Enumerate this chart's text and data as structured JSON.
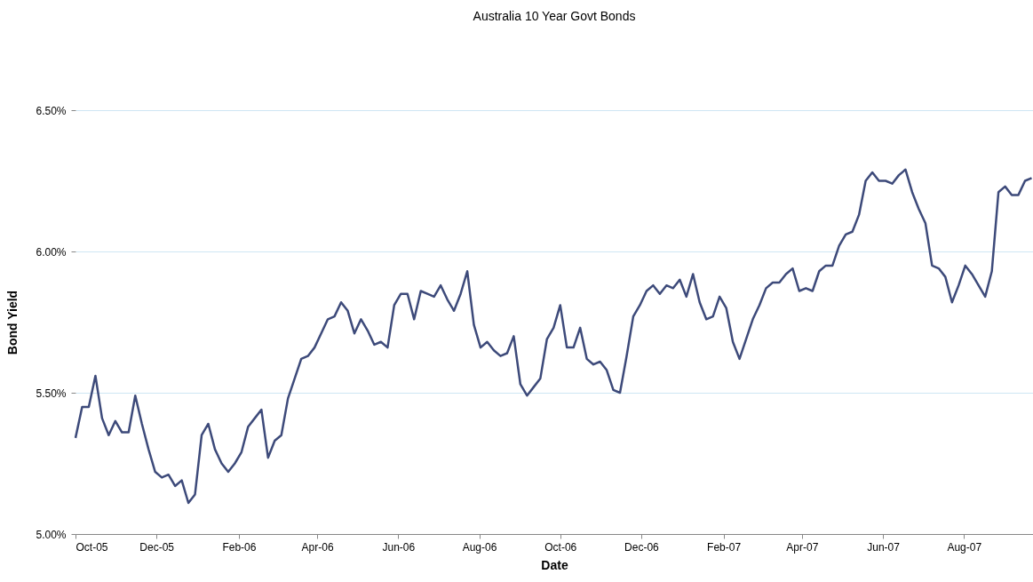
{
  "chart_data": {
    "type": "line",
    "title": "Australia 10 Year Govt Bonds",
    "xlabel": "Date",
    "ylabel": "Bond Yield",
    "xlim": [
      "2005-10-01",
      "2007-09-22"
    ],
    "xticks": [
      {
        "value": "2005-10-01",
        "label": "Oct-05"
      },
      {
        "value": "2005-12-01",
        "label": "Dec-05"
      },
      {
        "value": "2006-02-01",
        "label": "Feb-06"
      },
      {
        "value": "2006-04-01",
        "label": "Apr-06"
      },
      {
        "value": "2006-06-01",
        "label": "Jun-06"
      },
      {
        "value": "2006-08-01",
        "label": "Aug-06"
      },
      {
        "value": "2006-10-01",
        "label": "Oct-06"
      },
      {
        "value": "2006-12-01",
        "label": "Dec-06"
      },
      {
        "value": "2007-02-01",
        "label": "Feb-07"
      },
      {
        "value": "2007-04-01",
        "label": "Apr-07"
      },
      {
        "value": "2007-06-01",
        "label": "Jun-07"
      },
      {
        "value": "2007-08-01",
        "label": "Aug-07"
      }
    ],
    "ylim": [
      5,
      6.5
    ],
    "yticks": [
      {
        "value": 5,
        "label": "5.00%"
      },
      {
        "value": 5.5,
        "label": "5.50%"
      },
      {
        "value": 6,
        "label": "6.00%"
      },
      {
        "value": 6.5,
        "label": "6.50%"
      }
    ],
    "grid": "y",
    "marker": "none",
    "line_style": "solid",
    "series": [
      {
        "color": "#3d4a7a",
        "x": [
          "2005-10-01",
          "2005-10-06",
          "2005-10-11",
          "2005-10-16",
          "2005-10-21",
          "2005-10-26",
          "2005-10-31",
          "2005-11-05",
          "2005-11-10",
          "2005-11-15",
          "2005-11-20",
          "2005-11-25",
          "2005-11-30",
          "2005-12-05",
          "2005-12-10",
          "2005-12-15",
          "2005-12-20",
          "2005-12-25",
          "2005-12-30",
          "2006-01-04",
          "2006-01-09",
          "2006-01-14",
          "2006-01-19",
          "2006-01-24",
          "2006-01-29",
          "2006-02-03",
          "2006-02-08",
          "2006-02-13",
          "2006-02-18",
          "2006-02-23",
          "2006-02-28",
          "2006-03-05",
          "2006-03-10",
          "2006-03-15",
          "2006-03-20",
          "2006-03-25",
          "2006-03-30",
          "2006-04-04",
          "2006-04-09",
          "2006-04-14",
          "2006-04-19",
          "2006-04-24",
          "2006-04-29",
          "2006-05-04",
          "2006-05-09",
          "2006-05-14",
          "2006-05-19",
          "2006-05-24",
          "2006-05-29",
          "2006-06-03",
          "2006-06-08",
          "2006-06-13",
          "2006-06-18",
          "2006-06-23",
          "2006-06-28",
          "2006-07-03",
          "2006-07-08",
          "2006-07-13",
          "2006-07-18",
          "2006-07-23",
          "2006-07-28",
          "2006-08-02",
          "2006-08-07",
          "2006-08-12",
          "2006-08-17",
          "2006-08-22",
          "2006-08-27",
          "2006-09-01",
          "2006-09-06",
          "2006-09-11",
          "2006-09-16",
          "2006-09-21",
          "2006-09-26",
          "2006-10-01",
          "2006-10-06",
          "2006-10-11",
          "2006-10-16",
          "2006-10-21",
          "2006-10-26",
          "2006-10-31",
          "2006-11-05",
          "2006-11-10",
          "2006-11-15",
          "2006-11-20",
          "2006-11-25",
          "2006-11-30",
          "2006-12-05",
          "2006-12-10",
          "2006-12-15",
          "2006-12-20",
          "2006-12-25",
          "2006-12-30",
          "2007-01-04",
          "2007-01-09",
          "2007-01-14",
          "2007-01-19",
          "2007-01-24",
          "2007-01-29",
          "2007-02-03",
          "2007-02-08",
          "2007-02-13",
          "2007-02-18",
          "2007-02-23",
          "2007-02-28",
          "2007-03-05",
          "2007-03-10",
          "2007-03-15",
          "2007-03-20",
          "2007-03-25",
          "2007-03-30",
          "2007-04-04",
          "2007-04-09",
          "2007-04-14",
          "2007-04-19",
          "2007-04-24",
          "2007-04-29",
          "2007-05-04",
          "2007-05-09",
          "2007-05-14",
          "2007-05-19",
          "2007-05-24",
          "2007-05-29",
          "2007-06-03",
          "2007-06-08",
          "2007-06-13",
          "2007-06-18",
          "2007-06-23",
          "2007-06-28",
          "2007-07-03",
          "2007-07-08",
          "2007-07-13",
          "2007-07-18",
          "2007-07-23",
          "2007-07-28",
          "2007-08-02",
          "2007-08-07",
          "2007-08-12",
          "2007-08-17",
          "2007-08-22",
          "2007-08-27",
          "2007-09-01",
          "2007-09-06",
          "2007-09-11",
          "2007-09-16",
          "2007-09-21"
        ],
        "values": [
          5.34,
          5.45,
          5.45,
          5.56,
          5.41,
          5.35,
          5.4,
          5.36,
          5.36,
          5.49,
          5.39,
          5.3,
          5.22,
          5.2,
          5.21,
          5.17,
          5.19,
          5.11,
          5.14,
          5.35,
          5.39,
          5.3,
          5.25,
          5.22,
          5.25,
          5.29,
          5.38,
          5.41,
          5.44,
          5.27,
          5.33,
          5.35,
          5.48,
          5.55,
          5.62,
          5.63,
          5.66,
          5.71,
          5.76,
          5.77,
          5.82,
          5.79,
          5.71,
          5.76,
          5.72,
          5.67,
          5.68,
          5.66,
          5.81,
          5.85,
          5.85,
          5.76,
          5.86,
          5.85,
          5.84,
          5.88,
          5.83,
          5.79,
          5.85,
          5.93,
          5.74,
          5.66,
          5.68,
          5.65,
          5.63,
          5.64,
          5.7,
          5.53,
          5.49,
          5.52,
          5.55,
          5.69,
          5.73,
          5.81,
          5.66,
          5.66,
          5.73,
          5.62,
          5.6,
          5.61,
          5.58,
          5.51,
          5.5,
          5.63,
          5.77,
          5.81,
          5.86,
          5.88,
          5.85,
          5.88,
          5.87,
          5.9,
          5.84,
          5.92,
          5.82,
          5.76,
          5.77,
          5.84,
          5.8,
          5.68,
          5.62,
          5.69,
          5.76,
          5.81,
          5.87,
          5.89,
          5.89,
          5.92,
          5.94,
          5.86,
          5.87,
          5.86,
          5.93,
          5.95,
          5.95,
          6.02,
          6.06,
          6.07,
          6.13,
          6.25,
          6.28,
          6.25,
          6.25,
          6.24,
          6.27,
          6.29,
          6.21,
          6.15,
          6.1,
          5.95,
          5.94,
          5.91,
          5.82,
          5.88,
          5.95,
          5.92,
          5.88,
          5.84,
          5.93,
          6.21,
          6.23,
          6.2,
          6.2,
          6.25,
          6.26
        ]
      }
    ]
  }
}
